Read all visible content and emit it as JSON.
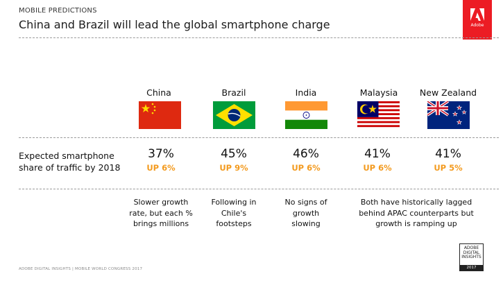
{
  "header": {
    "kicker": "MOBILE PREDICTIONS",
    "title": "China and Brazil will lead the global smartphone charge",
    "logo_text": "Adobe"
  },
  "row_label": [
    "Expected smartphone",
    "share of traffic by 2018"
  ],
  "countries": [
    {
      "name": "China",
      "share": "37%",
      "growth": "UP 6%",
      "flag": "china"
    },
    {
      "name": "Brazil",
      "share": "45%",
      "growth": "UP 9%",
      "flag": "brazil"
    },
    {
      "name": "India",
      "share": "46%",
      "growth": "UP 6%",
      "flag": "india"
    },
    {
      "name": "Malaysia",
      "share": "41%",
      "growth": "UP 6%",
      "flag": "malaysia"
    },
    {
      "name": "New Zealand",
      "share": "41%",
      "growth": "UP 5%",
      "flag": "new-zealand"
    }
  ],
  "notes": [
    [
      "Slower growth",
      "rate, but each %",
      "brings millions"
    ],
    [
      "Following in",
      "Chile's",
      "footsteps"
    ],
    [
      "No signs of",
      "growth",
      "slowing"
    ],
    [
      "Both have historically lagged",
      "behind APAC counterparts but",
      "growth is ramping up"
    ]
  ],
  "footer": "ADOBE DIGITAL INSIGHTS | MOBILE WORLD CONGRESS 2017",
  "badge": {
    "lines": [
      "ADOBE",
      "DIGITAL",
      "INSIGHTS"
    ],
    "year": "2017"
  },
  "colors": {
    "accent": "#f39a1e",
    "brand": "#ec1c24"
  }
}
